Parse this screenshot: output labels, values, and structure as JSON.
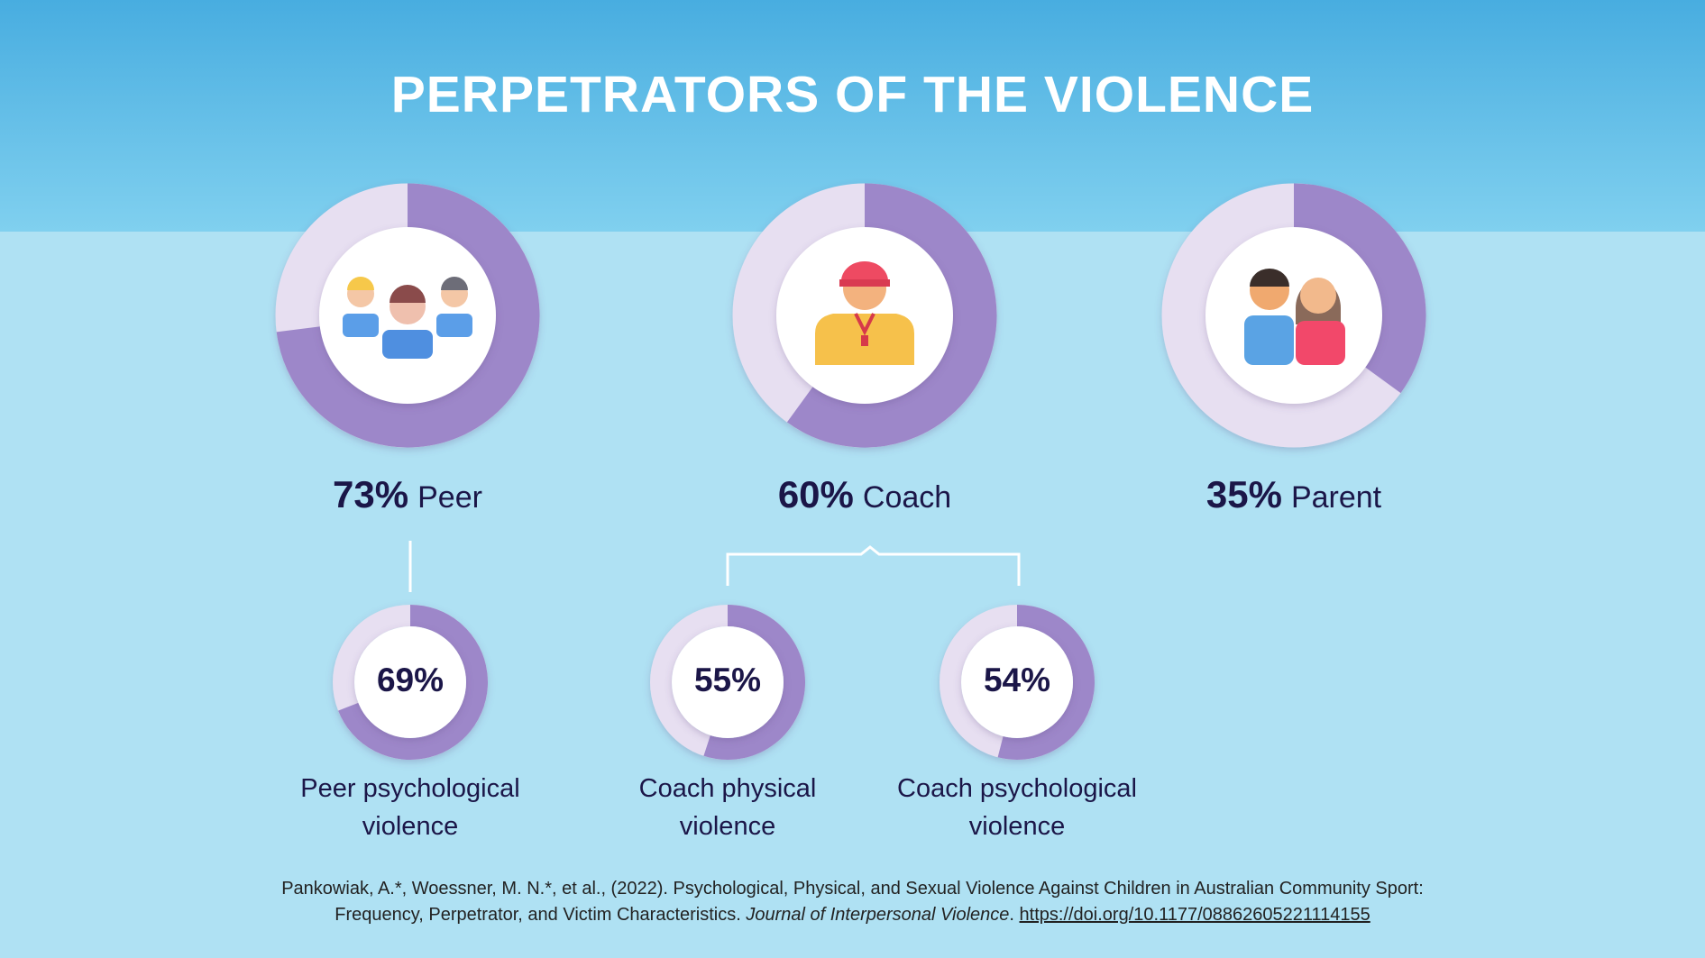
{
  "title": "PERPETRATORS OF THE VIOLENCE",
  "chart_data": [
    {
      "type": "donut",
      "categories": [
        "Peer"
      ],
      "values": [
        73
      ],
      "value_labels": [
        "73%"
      ],
      "color": "#9d87c9"
    },
    {
      "type": "donut",
      "categories": [
        "Coach"
      ],
      "values": [
        60
      ],
      "value_labels": [
        "60%"
      ],
      "color": "#9d87c9"
    },
    {
      "type": "donut",
      "categories": [
        "Parent"
      ],
      "values": [
        35
      ],
      "value_labels": [
        "35%"
      ],
      "color": "#9d87c9"
    },
    {
      "type": "donut",
      "categories": [
        "Peer psychological violence"
      ],
      "values": [
        69
      ],
      "value_labels": [
        "69%"
      ],
      "color": "#9d87c9"
    },
    {
      "type": "donut",
      "categories": [
        "Coach physical violence"
      ],
      "values": [
        55
      ],
      "value_labels": [
        "55%"
      ],
      "color": "#9d87c9"
    },
    {
      "type": "donut",
      "categories": [
        "Coach psychological violence"
      ],
      "values": [
        54
      ],
      "value_labels": [
        "54%"
      ],
      "color": "#9d87c9"
    }
  ],
  "citation": {
    "text": "Pankowiak, A.*, Woessner, M. N.*, et al., (2022). Psychological, Physical, and Sexual Violence Against Children in Australian Community Sport: Frequency, Perpetrator, and Victim Characteristics.",
    "journal": "Journal of Interpersonal Violence",
    "journal_end": ".",
    "url": "https://doi.org/10.1177/08862605221114155"
  }
}
